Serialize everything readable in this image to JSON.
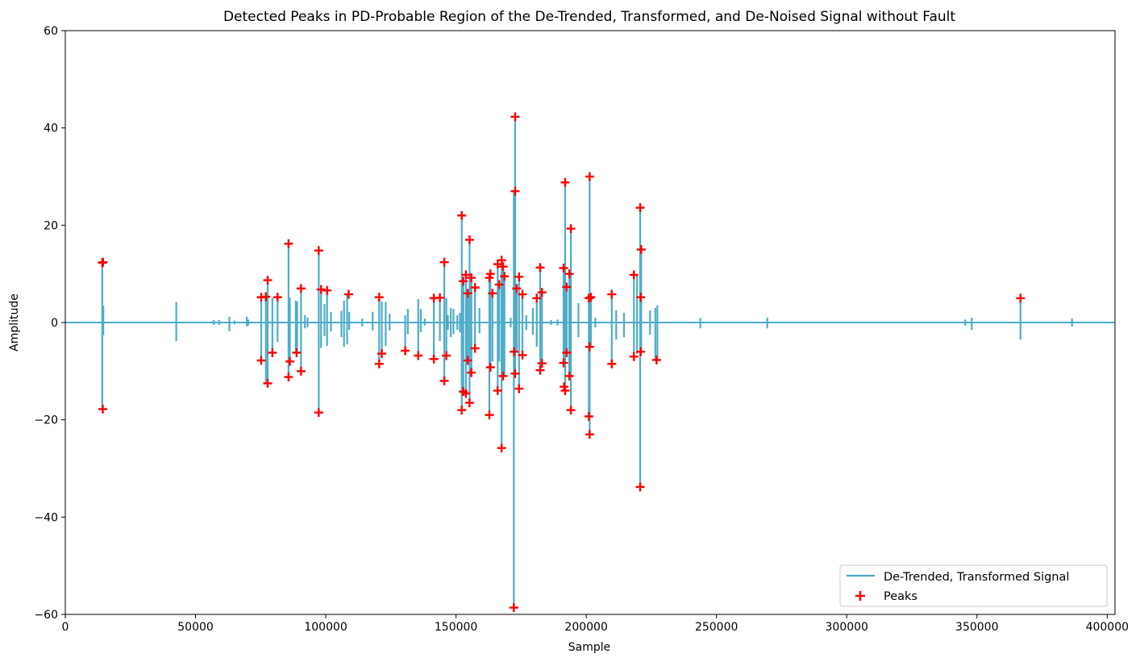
{
  "chart_data": {
    "type": "line",
    "title": "Detected Peaks in PD-Probable Region of the De-Trended, Transformed, and De-Noised Signal without Fault",
    "xlabel": "Sample",
    "ylabel": "Amplitude",
    "xlim": [
      0,
      403000
    ],
    "ylim": [
      -60,
      60
    ],
    "xticks": [
      0,
      50000,
      100000,
      150000,
      200000,
      250000,
      300000,
      350000,
      400000
    ],
    "xtick_labels": [
      "0",
      "50000",
      "100000",
      "150000",
      "200000",
      "250000",
      "300000",
      "350000",
      "400000"
    ],
    "yticks": [
      -60,
      -40,
      -20,
      0,
      20,
      40,
      60
    ],
    "ytick_labels": [
      "−60",
      "−40",
      "−20",
      "0",
      "20",
      "40",
      "60"
    ],
    "grid": false,
    "legend_position": "lower-right",
    "colors": {
      "signal": "#4eacc8",
      "peaks": "#ff0000"
    },
    "series": [
      {
        "name": "De-Trended, Transformed Signal",
        "style": "line",
        "spikes": [
          [
            14200,
            12.3,
            -17.8
          ],
          [
            14600,
            3.5,
            -2.6
          ],
          [
            42600,
            4.2,
            -3.8
          ],
          [
            57000,
            0.5,
            -0.5
          ],
          [
            59000,
            0.5,
            -0.5
          ],
          [
            63000,
            1.2,
            -1.8
          ],
          [
            65000,
            0.4,
            -0.4
          ],
          [
            69700,
            1.2,
            -0.8
          ],
          [
            70300,
            0.6,
            -0.6
          ],
          [
            75200,
            5.2,
            -7.8
          ],
          [
            77000,
            5.3,
            -12.5
          ],
          [
            77700,
            8.7,
            -12.3
          ],
          [
            79500,
            5.0,
            -6.2
          ],
          [
            81500,
            5.2,
            -4.0
          ],
          [
            85700,
            16.2,
            -11.2
          ],
          [
            86200,
            5.1,
            -8.0
          ],
          [
            88500,
            4.5,
            -6.2
          ],
          [
            89000,
            4.3,
            -5.8
          ],
          [
            90500,
            7.0,
            -10.0
          ],
          [
            92000,
            1.5,
            -1.2
          ],
          [
            93000,
            1.0,
            -1.0
          ],
          [
            97300,
            14.8,
            -18.5
          ],
          [
            98200,
            6.8,
            -5.2
          ],
          [
            99500,
            3.8,
            -2.8
          ],
          [
            100500,
            6.6,
            -4.8
          ],
          [
            102000,
            2.2,
            -1.8
          ],
          [
            106000,
            2.4,
            -3.0
          ],
          [
            107000,
            4.5,
            -5.0
          ],
          [
            108200,
            5.8,
            -4.5
          ],
          [
            109000,
            2.2,
            -1.5
          ],
          [
            114000,
            0.8,
            -0.8
          ],
          [
            118000,
            2.2,
            -1.6
          ],
          [
            120500,
            5.2,
            -8.5
          ],
          [
            121500,
            4.3,
            -6.4
          ],
          [
            123000,
            4.2,
            -4.8
          ],
          [
            124500,
            1.8,
            -1.6
          ],
          [
            130500,
            1.5,
            -5.8
          ],
          [
            131500,
            2.8,
            -2.4
          ],
          [
            135500,
            4.8,
            -6.8
          ],
          [
            136500,
            2.8,
            -2.0
          ],
          [
            138000,
            0.8,
            -0.6
          ],
          [
            141500,
            5.0,
            -7.5
          ],
          [
            143800,
            5.1,
            -3.8
          ],
          [
            145500,
            12.4,
            -12.0
          ],
          [
            146300,
            5.0,
            -6.8
          ],
          [
            146900,
            1.5,
            -1.5
          ],
          [
            148000,
            3.0,
            -3.0
          ],
          [
            149000,
            2.8,
            -2.4
          ],
          [
            150500,
            1.5,
            -1.5
          ],
          [
            151500,
            2.0,
            -2.0
          ],
          [
            152200,
            22.0,
            -18.0
          ],
          [
            152800,
            8.5,
            -14.2
          ],
          [
            153800,
            9.8,
            -14.6
          ],
          [
            154500,
            6.0,
            -7.8
          ],
          [
            155200,
            17.0,
            -16.5
          ],
          [
            155900,
            9.2,
            -10.3
          ],
          [
            157300,
            7.2,
            -5.3
          ],
          [
            159000,
            3.0,
            -2.2
          ],
          [
            162800,
            9.2,
            -19.0
          ],
          [
            163200,
            10.0,
            -9.2
          ],
          [
            164000,
            6.0,
            -8.0
          ],
          [
            166000,
            12.0,
            -14.0
          ],
          [
            166600,
            7.8,
            -8.0
          ],
          [
            167500,
            12.8,
            -25.8
          ],
          [
            168100,
            11.5,
            -11.0
          ],
          [
            168600,
            9.5,
            -11.0
          ],
          [
            171000,
            1.0,
            -1.0
          ],
          [
            172200,
            27.0,
            -58.6
          ],
          [
            172700,
            42.3,
            -10.5
          ],
          [
            173300,
            7.0,
            -6.0
          ],
          [
            174200,
            9.4,
            -13.6
          ],
          [
            175500,
            5.8,
            -6.7
          ],
          [
            177000,
            1.5,
            -1.5
          ],
          [
            179500,
            3.0,
            -2.5
          ],
          [
            181000,
            5.0,
            -5.0
          ],
          [
            182300,
            11.3,
            -9.8
          ],
          [
            183000,
            6.2,
            -8.4
          ],
          [
            186500,
            0.5,
            -0.5
          ],
          [
            189000,
            0.6,
            -0.6
          ],
          [
            191300,
            11.2,
            -8.3
          ],
          [
            191900,
            28.8,
            -14.0
          ],
          [
            192500,
            7.3,
            -6.2
          ],
          [
            193500,
            10.0,
            -11.0
          ],
          [
            194100,
            19.3,
            -18.0
          ],
          [
            197000,
            4.0,
            -3.0
          ],
          [
            201000,
            5.0,
            -19.3
          ],
          [
            201300,
            30.0,
            -23.0
          ],
          [
            201800,
            5.2,
            -5.0
          ],
          [
            203500,
            1.0,
            -1.0
          ],
          [
            209800,
            5.8,
            -8.5
          ],
          [
            211500,
            2.5,
            -3.5
          ],
          [
            214500,
            2.0,
            -3.0
          ],
          [
            218300,
            9.8,
            -7.0
          ],
          [
            219500,
            9.8,
            -6.5
          ],
          [
            220700,
            23.6,
            -33.8
          ],
          [
            221100,
            15.0,
            -6.0
          ],
          [
            224500,
            2.5,
            -2.5
          ],
          [
            226500,
            3.0,
            -7.7
          ],
          [
            227300,
            3.5,
            -7.6
          ],
          [
            243800,
            0.9,
            -1.2
          ],
          [
            269500,
            1.0,
            -1.2
          ],
          [
            345500,
            0.6,
            -0.6
          ],
          [
            348000,
            1.0,
            -1.5
          ],
          [
            366700,
            5.2,
            -3.5
          ],
          [
            386500,
            0.8,
            -0.8
          ]
        ]
      },
      {
        "name": "Peaks",
        "style": "scatter",
        "points": [
          [
            14200,
            12.3
          ],
          [
            14500,
            12.4
          ],
          [
            14400,
            -17.8
          ],
          [
            75200,
            5.2
          ],
          [
            75200,
            -7.8
          ],
          [
            77000,
            5.3
          ],
          [
            77700,
            8.7
          ],
          [
            77700,
            -12.5
          ],
          [
            79500,
            -6.2
          ],
          [
            81500,
            5.2
          ],
          [
            85700,
            16.2
          ],
          [
            85700,
            -11.2
          ],
          [
            86200,
            -8.0
          ],
          [
            88800,
            -6.2
          ],
          [
            90500,
            7.0
          ],
          [
            90500,
            -10.0
          ],
          [
            97300,
            14.8
          ],
          [
            97300,
            -18.5
          ],
          [
            98200,
            6.8
          ],
          [
            100500,
            6.6
          ],
          [
            108800,
            5.8
          ],
          [
            120500,
            5.2
          ],
          [
            120500,
            -8.5
          ],
          [
            121500,
            -6.4
          ],
          [
            130500,
            -5.8
          ],
          [
            135500,
            -6.8
          ],
          [
            141500,
            5.0
          ],
          [
            141500,
            -7.5
          ],
          [
            143800,
            5.1
          ],
          [
            145500,
            12.4
          ],
          [
            145500,
            -12.0
          ],
          [
            146300,
            -6.8
          ],
          [
            152200,
            22.0
          ],
          [
            152200,
            -18.0
          ],
          [
            152800,
            8.5
          ],
          [
            152800,
            -14.2
          ],
          [
            153800,
            9.8
          ],
          [
            153800,
            -14.6
          ],
          [
            154500,
            6.0
          ],
          [
            154500,
            -7.8
          ],
          [
            155200,
            17.0
          ],
          [
            155200,
            -16.5
          ],
          [
            155900,
            9.2
          ],
          [
            155900,
            -10.3
          ],
          [
            157300,
            7.2
          ],
          [
            157300,
            -5.3
          ],
          [
            162800,
            9.2
          ],
          [
            162800,
            -19.0
          ],
          [
            163200,
            10.0
          ],
          [
            163200,
            -9.2
          ],
          [
            164000,
            6.0
          ],
          [
            166000,
            12.0
          ],
          [
            166000,
            -14.0
          ],
          [
            166600,
            7.8
          ],
          [
            167500,
            12.8
          ],
          [
            167500,
            -25.8
          ],
          [
            168100,
            11.5
          ],
          [
            168100,
            -11.0
          ],
          [
            168600,
            9.5
          ],
          [
            172200,
            -58.6
          ],
          [
            172700,
            42.3
          ],
          [
            172700,
            27.0
          ],
          [
            172700,
            -10.5
          ],
          [
            173300,
            7.0
          ],
          [
            172300,
            -6.0
          ],
          [
            174200,
            9.4
          ],
          [
            174200,
            -13.6
          ],
          [
            175500,
            5.8
          ],
          [
            175500,
            -6.7
          ],
          [
            181000,
            5.0
          ],
          [
            182300,
            11.3
          ],
          [
            182300,
            -9.8
          ],
          [
            183000,
            6.2
          ],
          [
            183000,
            -8.4
          ],
          [
            191300,
            11.2
          ],
          [
            191300,
            -8.3
          ],
          [
            191900,
            28.8
          ],
          [
            191900,
            -14.0
          ],
          [
            192500,
            7.3
          ],
          [
            192500,
            -6.2
          ],
          [
            191500,
            -13.2
          ],
          [
            193500,
            10.0
          ],
          [
            193500,
            -11.0
          ],
          [
            194100,
            19.3
          ],
          [
            194100,
            -18.0
          ],
          [
            201000,
            5.0
          ],
          [
            201000,
            -19.3
          ],
          [
            201300,
            30.0
          ],
          [
            201300,
            -23.0
          ],
          [
            201800,
            5.2
          ],
          [
            201300,
            -5.0
          ],
          [
            209800,
            5.8
          ],
          [
            209800,
            -8.5
          ],
          [
            218300,
            9.8
          ],
          [
            218300,
            -7.0
          ],
          [
            220700,
            23.6
          ],
          [
            220700,
            -33.8
          ],
          [
            221100,
            15.0
          ],
          [
            220900,
            5.2
          ],
          [
            220900,
            -6.0
          ],
          [
            227000,
            -7.7
          ],
          [
            366700,
            5.0
          ]
        ]
      }
    ]
  }
}
